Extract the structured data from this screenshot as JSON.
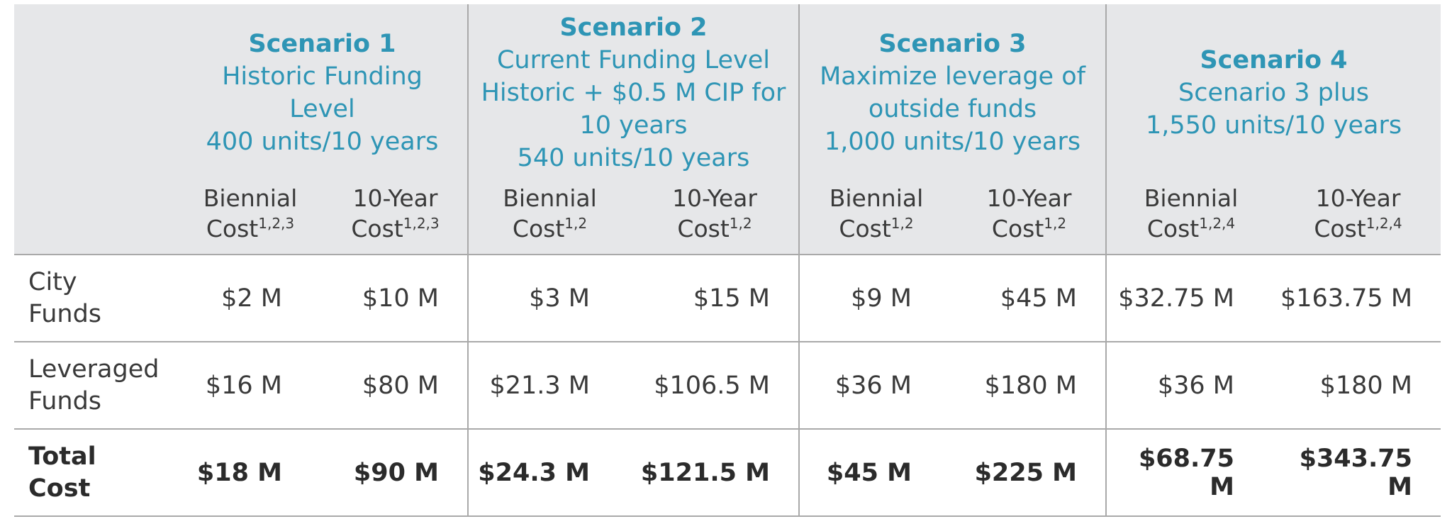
{
  "scenarios": [
    {
      "title": "Scenario 1",
      "lines": [
        "Historic Funding",
        "Level",
        "400 units/10 years"
      ],
      "biennial_label": "Biennial",
      "biennial_cost": "Cost",
      "biennial_sup": "1,2,3",
      "ten_label": "10-Year",
      "ten_cost": "Cost",
      "ten_sup": "1,2,3"
    },
    {
      "title": "Scenario 2",
      "lines": [
        "Current Funding Level",
        "Historic + $0.5 M CIP for",
        "10 years",
        "540 units/10 years"
      ],
      "biennial_label": "Biennial",
      "biennial_cost": "Cost",
      "biennial_sup": "1,2",
      "ten_label": "10-Year",
      "ten_cost": "Cost",
      "ten_sup": "1,2"
    },
    {
      "title": "Scenario 3",
      "lines": [
        "Maximize leverage of",
        "outside funds",
        "1,000 units/10 years"
      ],
      "biennial_label": "Biennial",
      "biennial_cost": "Cost",
      "biennial_sup": "1,2",
      "ten_label": "10-Year",
      "ten_cost": "Cost",
      "ten_sup": "1,2"
    },
    {
      "title": "Scenario 4",
      "lines": [
        "Scenario 3 plus",
        "1,550 units/10 years"
      ],
      "biennial_label": "Biennial",
      "biennial_cost": "Cost",
      "biennial_sup": "1,2,4",
      "ten_label": "10-Year",
      "ten_cost": "Cost",
      "ten_sup": "1,2,4"
    }
  ],
  "rows": [
    {
      "label": [
        "City",
        "Funds"
      ],
      "values": [
        "$2 M",
        "$10 M",
        "$3 M",
        "$15 M",
        "$9 M",
        "$45 M",
        "$32.75 M",
        "$163.75 M"
      ]
    },
    {
      "label": [
        "Leveraged",
        "Funds"
      ],
      "values": [
        "$16 M",
        "$80 M",
        "$21.3 M",
        "$106.5 M",
        "$36 M",
        "$180 M",
        "$36 M",
        "$180 M"
      ]
    },
    {
      "label": [
        "Total",
        "Cost"
      ],
      "values": [
        "$18 M",
        "$90 M",
        "$24.3 M",
        "$121.5 M",
        "$45 M",
        "$225 M",
        "$68.75 M",
        "$343.75 M"
      ]
    }
  ],
  "colors": {
    "header_bg": "#e6e7e9",
    "accent": "#2e95b5",
    "text": "#3a3a3a",
    "rule": "#a9a9a9"
  }
}
